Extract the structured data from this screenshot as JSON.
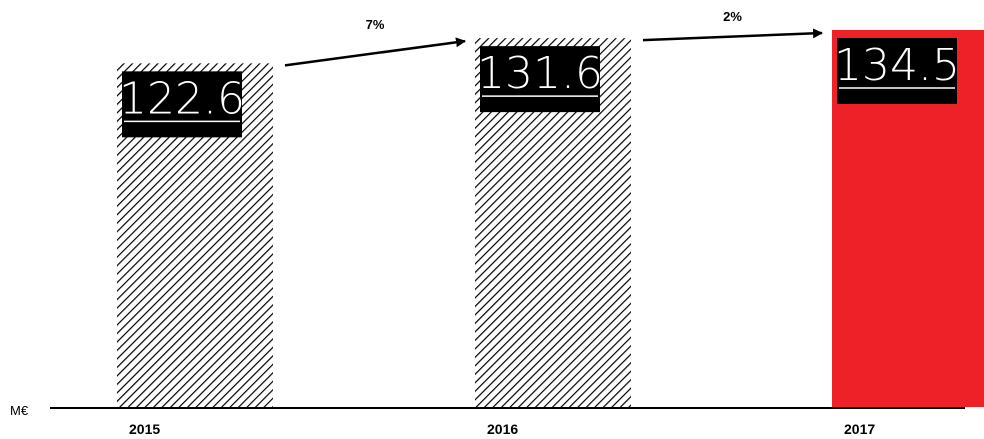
{
  "chart_data": {
    "type": "bar",
    "unit": "M€",
    "categories": [
      "2015",
      "2016",
      "2017"
    ],
    "values": [
      122.6,
      131.6,
      134.5
    ],
    "growth": [
      "7%",
      "2%"
    ],
    "bar_styles": [
      "hatched",
      "hatched",
      "solid"
    ],
    "colors": {
      "highlight": "#ee2128",
      "hatch": "#000000",
      "axis": "#000000",
      "label_bg": "#000000"
    },
    "grid": false,
    "legend": "none"
  }
}
